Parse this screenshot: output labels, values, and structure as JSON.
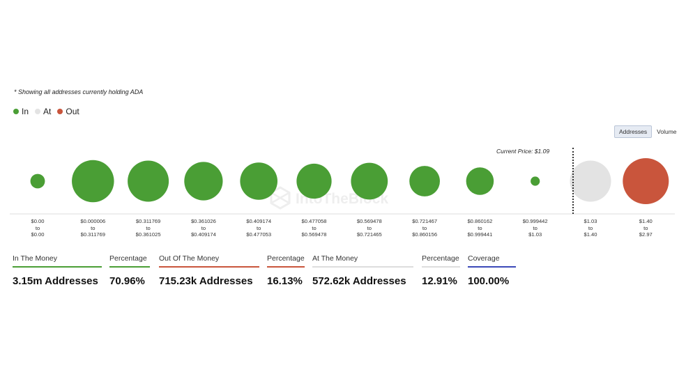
{
  "note": "* Showing all addresses currently holding ADA",
  "legend": [
    {
      "label": "In",
      "color": "#4a9e35"
    },
    {
      "label": "At",
      "color": "#e3e3e3"
    },
    {
      "label": "Out",
      "color": "#c9553c"
    }
  ],
  "toggle": {
    "addresses": "Addresses",
    "volume": "Volume",
    "active": "Addresses"
  },
  "current_price_label": "Current Price: $1.09",
  "watermark": "IntoTheBlock",
  "chart_data": {
    "type": "scatter",
    "title": "",
    "categories": [
      "$0.00 to $0.00",
      "$0.000006 to $0.311769",
      "$0.311769 to $0.361025",
      "$0.361026 to $0.409174",
      "$0.409174 to $0.477053",
      "$0.477058 to $0.569478",
      "$0.569478 to $0.721465",
      "$0.721467 to $0.860156",
      "$0.860162 to $0.999441",
      "$0.999442 to $1.03",
      "$1.03 to $1.40",
      "$1.40 to $2.97"
    ],
    "buckets": [
      {
        "from": "$0.00",
        "to": "$0.00",
        "status": "In",
        "relative_size": 0.05
      },
      {
        "from": "$0.000006",
        "to": "$0.311769",
        "status": "In",
        "relative_size": 0.42
      },
      {
        "from": "$0.311769",
        "to": "$0.361025",
        "status": "In",
        "relative_size": 0.4
      },
      {
        "from": "$0.361026",
        "to": "$0.409174",
        "status": "In",
        "relative_size": 0.35
      },
      {
        "from": "$0.409174",
        "to": "$0.477053",
        "status": "In",
        "relative_size": 0.33
      },
      {
        "from": "$0.477058",
        "to": "$0.569478",
        "status": "In",
        "relative_size": 0.29
      },
      {
        "from": "$0.569478",
        "to": "$0.721465",
        "status": "In",
        "relative_size": 0.32
      },
      {
        "from": "$0.721467",
        "to": "$0.860156",
        "status": "In",
        "relative_size": 0.22
      },
      {
        "from": "$0.860162",
        "to": "$0.999441",
        "status": "In",
        "relative_size": 0.18
      },
      {
        "from": "$0.999442",
        "to": "$1.03",
        "status": "In",
        "relative_size": 0.02
      },
      {
        "from": "$1.03",
        "to": "$1.40",
        "status": "At",
        "relative_size": 0.4
      },
      {
        "from": "$1.40",
        "to": "$2.97",
        "status": "Out",
        "relative_size": 0.5
      }
    ],
    "current_price": "$1.09"
  },
  "stats": [
    {
      "label": "In The Money",
      "value": "3.15m Addresses",
      "color": "#4a9e35"
    },
    {
      "label": "Percentage",
      "value": "70.96%",
      "color": "#4a9e35"
    },
    {
      "label": "Out Of The Money",
      "value": "715.23k Addresses",
      "color": "#c9553c"
    },
    {
      "label": "Percentage",
      "value": "16.13%",
      "color": "#c9553c"
    },
    {
      "label": "At The Money",
      "value": "572.62k Addresses",
      "color": "#dddddd"
    },
    {
      "label": "Percentage",
      "value": "12.91%",
      "color": "#dddddd"
    },
    {
      "label": "Coverage",
      "value": "100.00%",
      "color": "#3b49b8"
    }
  ]
}
